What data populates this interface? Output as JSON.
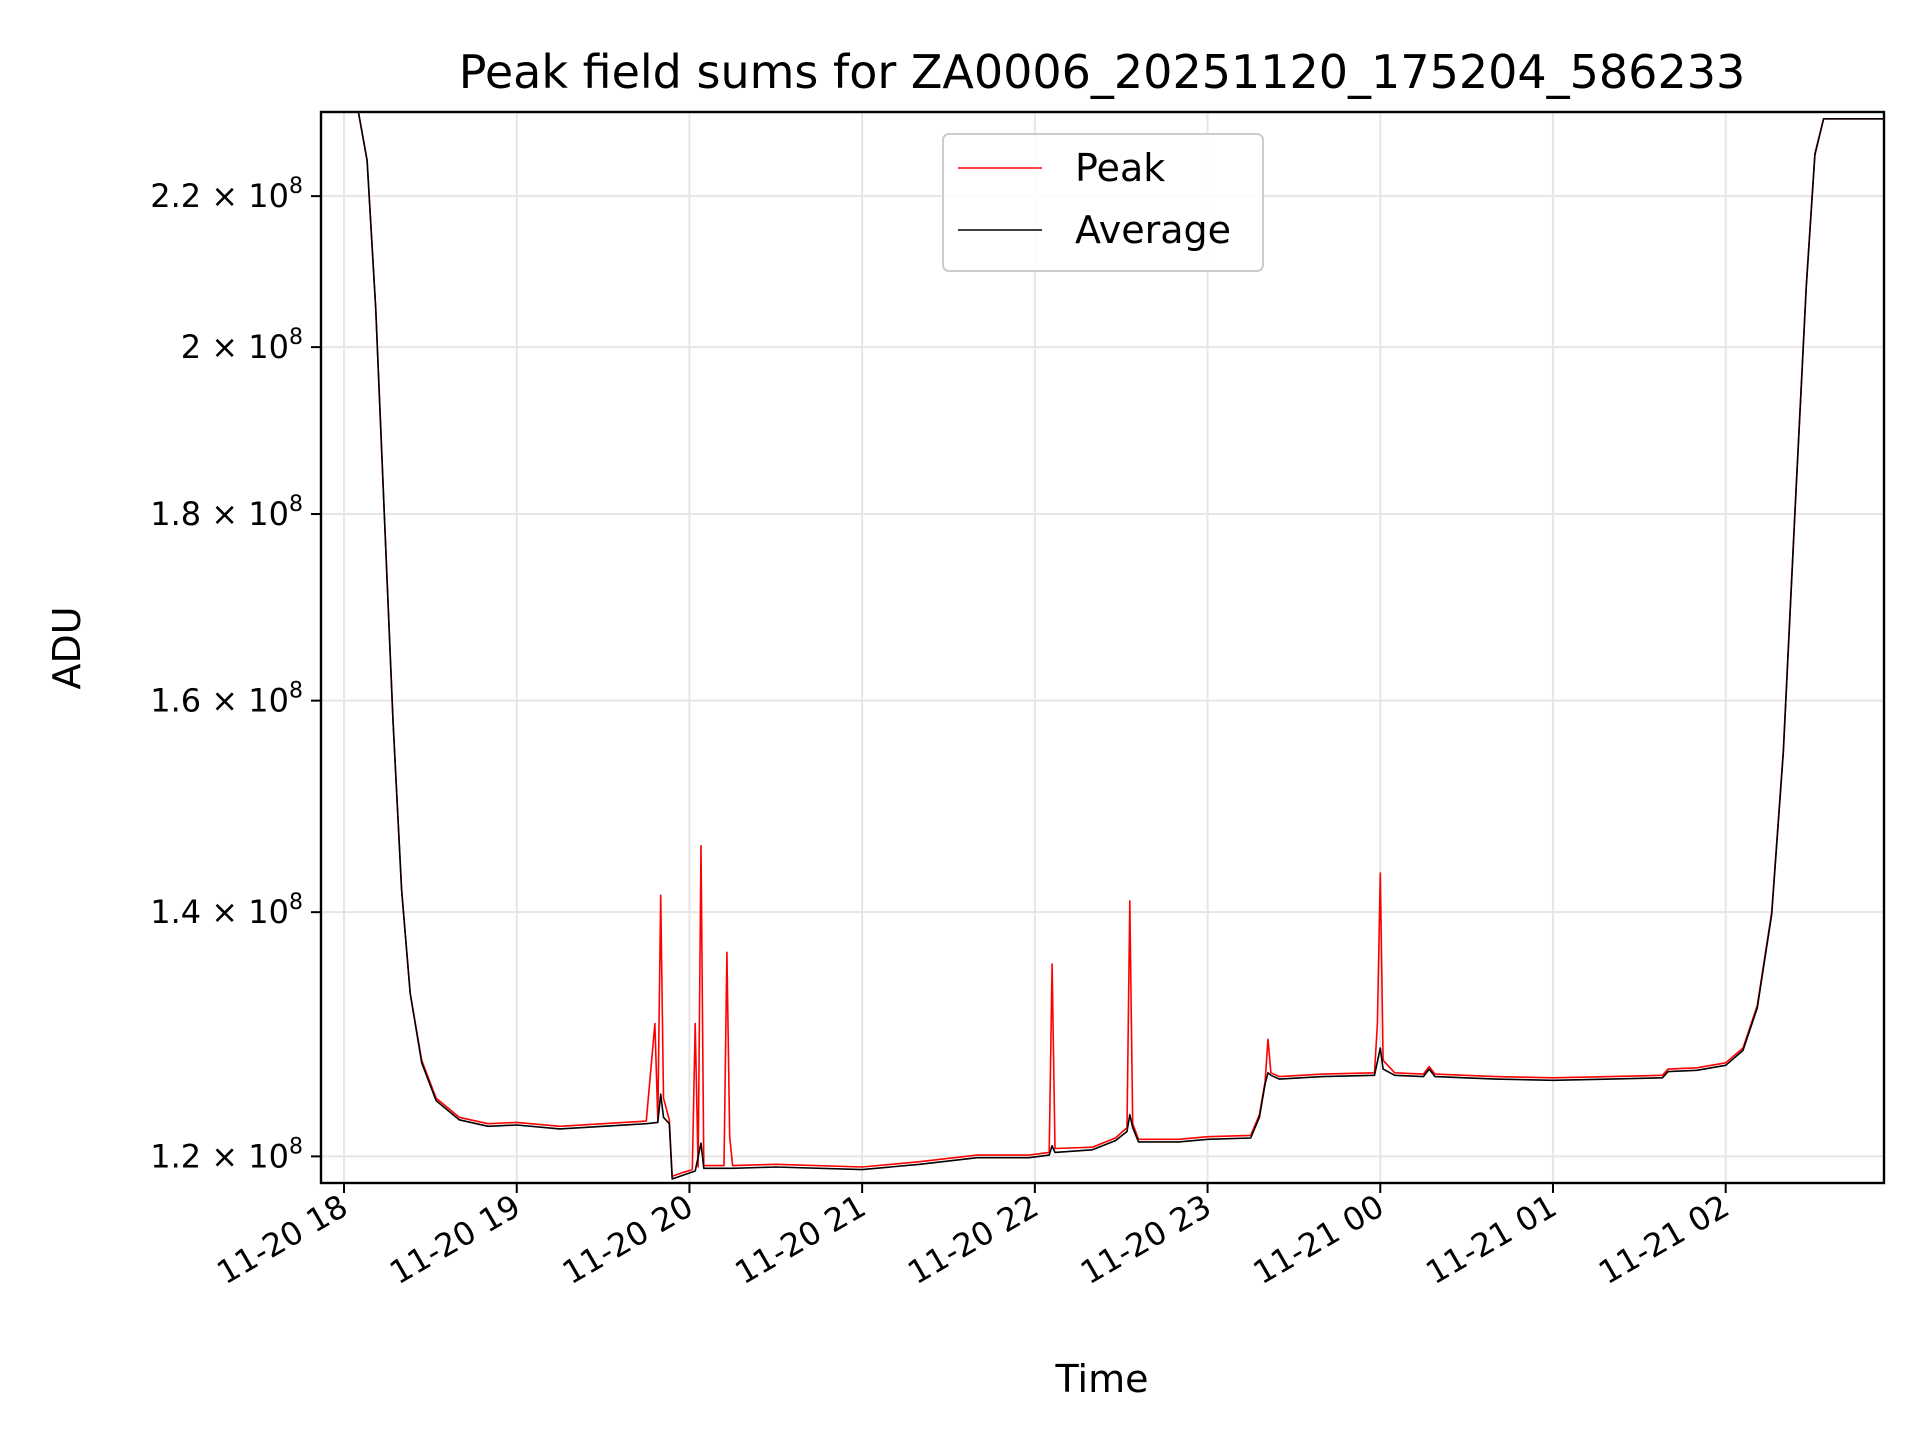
{
  "chart_data": {
    "type": "line",
    "title": "Peak field sums for ZA0006_20251120_175204_586233",
    "xlabel": "Time",
    "ylabel": "ADU",
    "y_scale": "log",
    "grid": true,
    "legend_placement": "upper-center",
    "xlim": [
      "2025-11-20 17:52",
      "2025-11-21 02:55"
    ],
    "ylim": [
      118000000,
      232000000
    ],
    "x_ticks": [
      {
        "t": "2025-11-20 18:00",
        "label": "11-20 18"
      },
      {
        "t": "2025-11-20 19:00",
        "label": "11-20 19"
      },
      {
        "t": "2025-11-20 20:00",
        "label": "11-20 20"
      },
      {
        "t": "2025-11-20 21:00",
        "label": "11-20 21"
      },
      {
        "t": "2025-11-20 22:00",
        "label": "11-20 22"
      },
      {
        "t": "2025-11-20 23:00",
        "label": "11-20 23"
      },
      {
        "t": "2025-11-21 00:00",
        "label": "11-21 00"
      },
      {
        "t": "2025-11-21 01:00",
        "label": "11-21 01"
      },
      {
        "t": "2025-11-21 02:00",
        "label": "11-21 02"
      }
    ],
    "y_ticks": [
      {
        "value": 120000000,
        "mantissa": "1.2",
        "exponent": "8"
      },
      {
        "value": 140000000,
        "mantissa": "1.4",
        "exponent": "8"
      },
      {
        "value": 160000000,
        "mantissa": "1.6",
        "exponent": "8"
      },
      {
        "value": 180000000,
        "mantissa": "1.8",
        "exponent": "8"
      },
      {
        "value": 200000000,
        "mantissa": "2",
        "exponent": "8"
      },
      {
        "value": 220000000,
        "mantissa": "2.2",
        "exponent": "8"
      }
    ],
    "series": [
      {
        "name": "Peak",
        "color": "#ff0000",
        "points": [
          [
            "2025-11-20 17:52",
            232000000
          ],
          [
            "2025-11-20 18:05",
            232000000
          ],
          [
            "2025-11-20 18:08",
            225000000
          ],
          [
            "2025-11-20 18:11",
            205000000
          ],
          [
            "2025-11-20 18:14",
            180000000
          ],
          [
            "2025-11-20 18:17",
            158000000
          ],
          [
            "2025-11-20 18:20",
            142000000
          ],
          [
            "2025-11-20 18:23",
            133000000
          ],
          [
            "2025-11-20 18:27",
            127500000
          ],
          [
            "2025-11-20 18:32",
            124500000
          ],
          [
            "2025-11-20 18:40",
            123000000
          ],
          [
            "2025-11-20 18:50",
            122500000
          ],
          [
            "2025-11-20 19:00",
            122600000
          ],
          [
            "2025-11-20 19:15",
            122300000
          ],
          [
            "2025-11-20 19:30",
            122500000
          ],
          [
            "2025-11-20 19:45",
            122700000
          ],
          [
            "2025-11-20 19:48",
            130500000
          ],
          [
            "2025-11-20 19:49",
            122800000
          ],
          [
            "2025-11-20 19:50",
            141500000
          ],
          [
            "2025-11-20 19:51",
            124500000
          ],
          [
            "2025-11-20 19:53",
            122800000
          ],
          [
            "2025-11-20 19:54",
            118500000
          ],
          [
            "2025-11-20 19:58",
            118800000
          ],
          [
            "2025-11-20 20:01",
            119000000
          ],
          [
            "2025-11-20 20:02",
            130500000
          ],
          [
            "2025-11-20 20:03",
            119200000
          ],
          [
            "2025-11-20 20:04",
            146000000
          ],
          [
            "2025-11-20 20:05",
            119300000
          ],
          [
            "2025-11-20 20:12",
            119300000
          ],
          [
            "2025-11-20 20:13",
            136500000
          ],
          [
            "2025-11-20 20:14",
            121500000
          ],
          [
            "2025-11-20 20:15",
            119300000
          ],
          [
            "2025-11-20 20:30",
            119400000
          ],
          [
            "2025-11-20 21:00",
            119200000
          ],
          [
            "2025-11-20 21:20",
            119600000
          ],
          [
            "2025-11-20 21:40",
            120100000
          ],
          [
            "2025-11-20 21:58",
            120100000
          ],
          [
            "2025-11-20 22:05",
            120300000
          ],
          [
            "2025-11-20 22:06",
            135500000
          ],
          [
            "2025-11-20 22:07",
            120600000
          ],
          [
            "2025-11-20 22:20",
            120700000
          ],
          [
            "2025-11-20 22:28",
            121400000
          ],
          [
            "2025-11-20 22:32",
            122200000
          ],
          [
            "2025-11-20 22:33",
            141000000
          ],
          [
            "2025-11-20 22:34",
            122500000
          ],
          [
            "2025-11-20 22:36",
            121300000
          ],
          [
            "2025-11-20 22:50",
            121300000
          ],
          [
            "2025-11-20 23:00",
            121500000
          ],
          [
            "2025-11-20 23:15",
            121600000
          ],
          [
            "2025-11-20 23:18",
            123200000
          ],
          [
            "2025-11-20 23:20",
            125800000
          ],
          [
            "2025-11-20 23:21",
            129200000
          ],
          [
            "2025-11-20 23:22",
            126500000
          ],
          [
            "2025-11-20 23:25",
            126200000
          ],
          [
            "2025-11-20 23:40",
            126400000
          ],
          [
            "2025-11-20 23:58",
            126500000
          ],
          [
            "2025-11-20 23:59",
            130500000
          ],
          [
            "2025-11-21 00:00",
            143500000
          ],
          [
            "2025-11-21 00:01",
            127500000
          ],
          [
            "2025-11-21 00:05",
            126500000
          ],
          [
            "2025-11-21 00:15",
            126400000
          ],
          [
            "2025-11-21 00:17",
            127000000
          ],
          [
            "2025-11-21 00:19",
            126400000
          ],
          [
            "2025-11-21 00:40",
            126200000
          ],
          [
            "2025-11-21 01:00",
            126100000
          ],
          [
            "2025-11-21 01:20",
            126200000
          ],
          [
            "2025-11-21 01:38",
            126300000
          ],
          [
            "2025-11-21 01:40",
            126800000
          ],
          [
            "2025-11-21 01:50",
            126900000
          ],
          [
            "2025-11-21 02:00",
            127300000
          ],
          [
            "2025-11-21 02:06",
            128500000
          ],
          [
            "2025-11-21 02:11",
            132000000
          ],
          [
            "2025-11-21 02:16",
            140000000
          ],
          [
            "2025-11-21 02:20",
            155000000
          ],
          [
            "2025-11-21 02:24",
            180000000
          ],
          [
            "2025-11-21 02:28",
            208000000
          ],
          [
            "2025-11-21 02:31",
            226000000
          ],
          [
            "2025-11-21 02:34",
            231000000
          ],
          [
            "2025-11-21 02:55",
            231000000
          ]
        ]
      },
      {
        "name": "Average",
        "color": "#000000",
        "points": [
          [
            "2025-11-20 17:52",
            232000000
          ],
          [
            "2025-11-20 18:05",
            232000000
          ],
          [
            "2025-11-20 18:08",
            225000000
          ],
          [
            "2025-11-20 18:11",
            205000000
          ],
          [
            "2025-11-20 18:14",
            180000000
          ],
          [
            "2025-11-20 18:17",
            158000000
          ],
          [
            "2025-11-20 18:20",
            142000000
          ],
          [
            "2025-11-20 18:23",
            133000000
          ],
          [
            "2025-11-20 18:27",
            127300000
          ],
          [
            "2025-11-20 18:32",
            124300000
          ],
          [
            "2025-11-20 18:40",
            122800000
          ],
          [
            "2025-11-20 18:50",
            122300000
          ],
          [
            "2025-11-20 19:00",
            122400000
          ],
          [
            "2025-11-20 19:15",
            122100000
          ],
          [
            "2025-11-20 19:30",
            122300000
          ],
          [
            "2025-11-20 19:45",
            122500000
          ],
          [
            "2025-11-20 19:49",
            122600000
          ],
          [
            "2025-11-20 19:50",
            124800000
          ],
          [
            "2025-11-20 19:51",
            123000000
          ],
          [
            "2025-11-20 19:53",
            122500000
          ],
          [
            "2025-11-20 19:54",
            118300000
          ],
          [
            "2025-11-20 19:58",
            118600000
          ],
          [
            "2025-11-20 20:02",
            118900000
          ],
          [
            "2025-11-20 20:04",
            121000000
          ],
          [
            "2025-11-20 20:05",
            119100000
          ],
          [
            "2025-11-20 20:15",
            119100000
          ],
          [
            "2025-11-20 20:30",
            119200000
          ],
          [
            "2025-11-20 21:00",
            119000000
          ],
          [
            "2025-11-20 21:20",
            119400000
          ],
          [
            "2025-11-20 21:40",
            119900000
          ],
          [
            "2025-11-20 21:58",
            119900000
          ],
          [
            "2025-11-20 22:05",
            120100000
          ],
          [
            "2025-11-20 22:06",
            120800000
          ],
          [
            "2025-11-20 22:07",
            120300000
          ],
          [
            "2025-11-20 22:20",
            120500000
          ],
          [
            "2025-11-20 22:28",
            121200000
          ],
          [
            "2025-11-20 22:32",
            121900000
          ],
          [
            "2025-11-20 22:33",
            123200000
          ],
          [
            "2025-11-20 22:34",
            122200000
          ],
          [
            "2025-11-20 22:36",
            121100000
          ],
          [
            "2025-11-20 22:50",
            121100000
          ],
          [
            "2025-11-20 23:00",
            121300000
          ],
          [
            "2025-11-20 23:15",
            121400000
          ],
          [
            "2025-11-20 23:18",
            123000000
          ],
          [
            "2025-11-20 23:20",
            125600000
          ],
          [
            "2025-11-20 23:21",
            126500000
          ],
          [
            "2025-11-20 23:22",
            126300000
          ],
          [
            "2025-11-20 23:25",
            126000000
          ],
          [
            "2025-11-20 23:40",
            126200000
          ],
          [
            "2025-11-20 23:58",
            126300000
          ],
          [
            "2025-11-21 00:00",
            128500000
          ],
          [
            "2025-11-21 00:01",
            126800000
          ],
          [
            "2025-11-21 00:05",
            126300000
          ],
          [
            "2025-11-21 00:15",
            126200000
          ],
          [
            "2025-11-21 00:17",
            126800000
          ],
          [
            "2025-11-21 00:19",
            126200000
          ],
          [
            "2025-11-21 00:40",
            126000000
          ],
          [
            "2025-11-21 01:00",
            125900000
          ],
          [
            "2025-11-21 01:20",
            126000000
          ],
          [
            "2025-11-21 01:38",
            126100000
          ],
          [
            "2025-11-21 01:40",
            126600000
          ],
          [
            "2025-11-21 01:50",
            126700000
          ],
          [
            "2025-11-21 02:00",
            127100000
          ],
          [
            "2025-11-21 02:06",
            128300000
          ],
          [
            "2025-11-21 02:11",
            131800000
          ],
          [
            "2025-11-21 02:16",
            139800000
          ],
          [
            "2025-11-21 02:20",
            154800000
          ],
          [
            "2025-11-21 02:24",
            179800000
          ],
          [
            "2025-11-21 02:28",
            207800000
          ],
          [
            "2025-11-21 02:31",
            225800000
          ],
          [
            "2025-11-21 02:34",
            231000000
          ],
          [
            "2025-11-21 02:55",
            231000000
          ]
        ]
      }
    ]
  }
}
